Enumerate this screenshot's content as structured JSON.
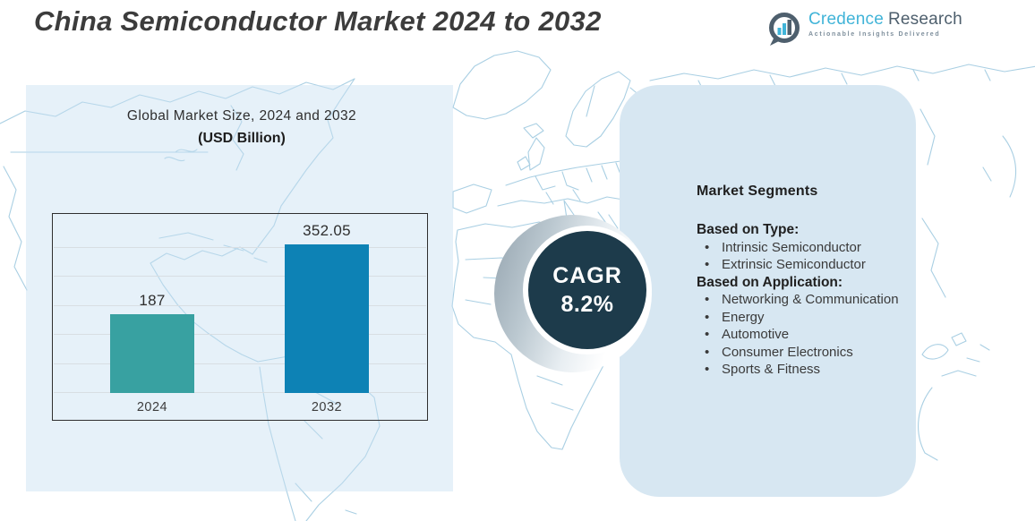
{
  "title": "China Semiconductor Market 2024 to 2032",
  "logo": {
    "brand_primary": "Credence",
    "brand_secondary": "Research",
    "tagline": "Actionable Insights Delivered"
  },
  "chart_data": {
    "type": "bar",
    "title": "Global Market Size, 2024 and 2032",
    "subtitle": "(USD Billion)",
    "categories": [
      "2024",
      "2032"
    ],
    "values": [
      187,
      352.05
    ],
    "value_labels": [
      "187",
      "352.05"
    ],
    "bar_colors": [
      "#38a1a1",
      "#0d82b5"
    ],
    "ylim": [
      0,
      370
    ],
    "grid": true,
    "gridline_count": 6,
    "legend": "none"
  },
  "cagr": {
    "label": "CAGR",
    "value": "8.2%"
  },
  "segments": {
    "heading": "Market Segments",
    "groups": [
      {
        "title": "Based on Type:",
        "items": [
          "Intrinsic Semiconductor",
          "Extrinsic Semiconductor"
        ]
      },
      {
        "title": "Based on Application:",
        "items": [
          "Networking & Communication",
          "Energy",
          "Automotive",
          "Consumer Electronics",
          "Sports & Fitness"
        ]
      }
    ]
  },
  "colors": {
    "bar_2024": "#38a1a1",
    "bar_2032": "#0d82b5",
    "cagr_circle": "#1d3b4b",
    "panel_left": "#e7f0f8",
    "panel_right": "#d7e7f2",
    "map_line": "#a9cfe3",
    "title_text": "#3c3c3c",
    "logo_blue": "#41b4d8",
    "logo_dark": "#4e5f6d"
  }
}
